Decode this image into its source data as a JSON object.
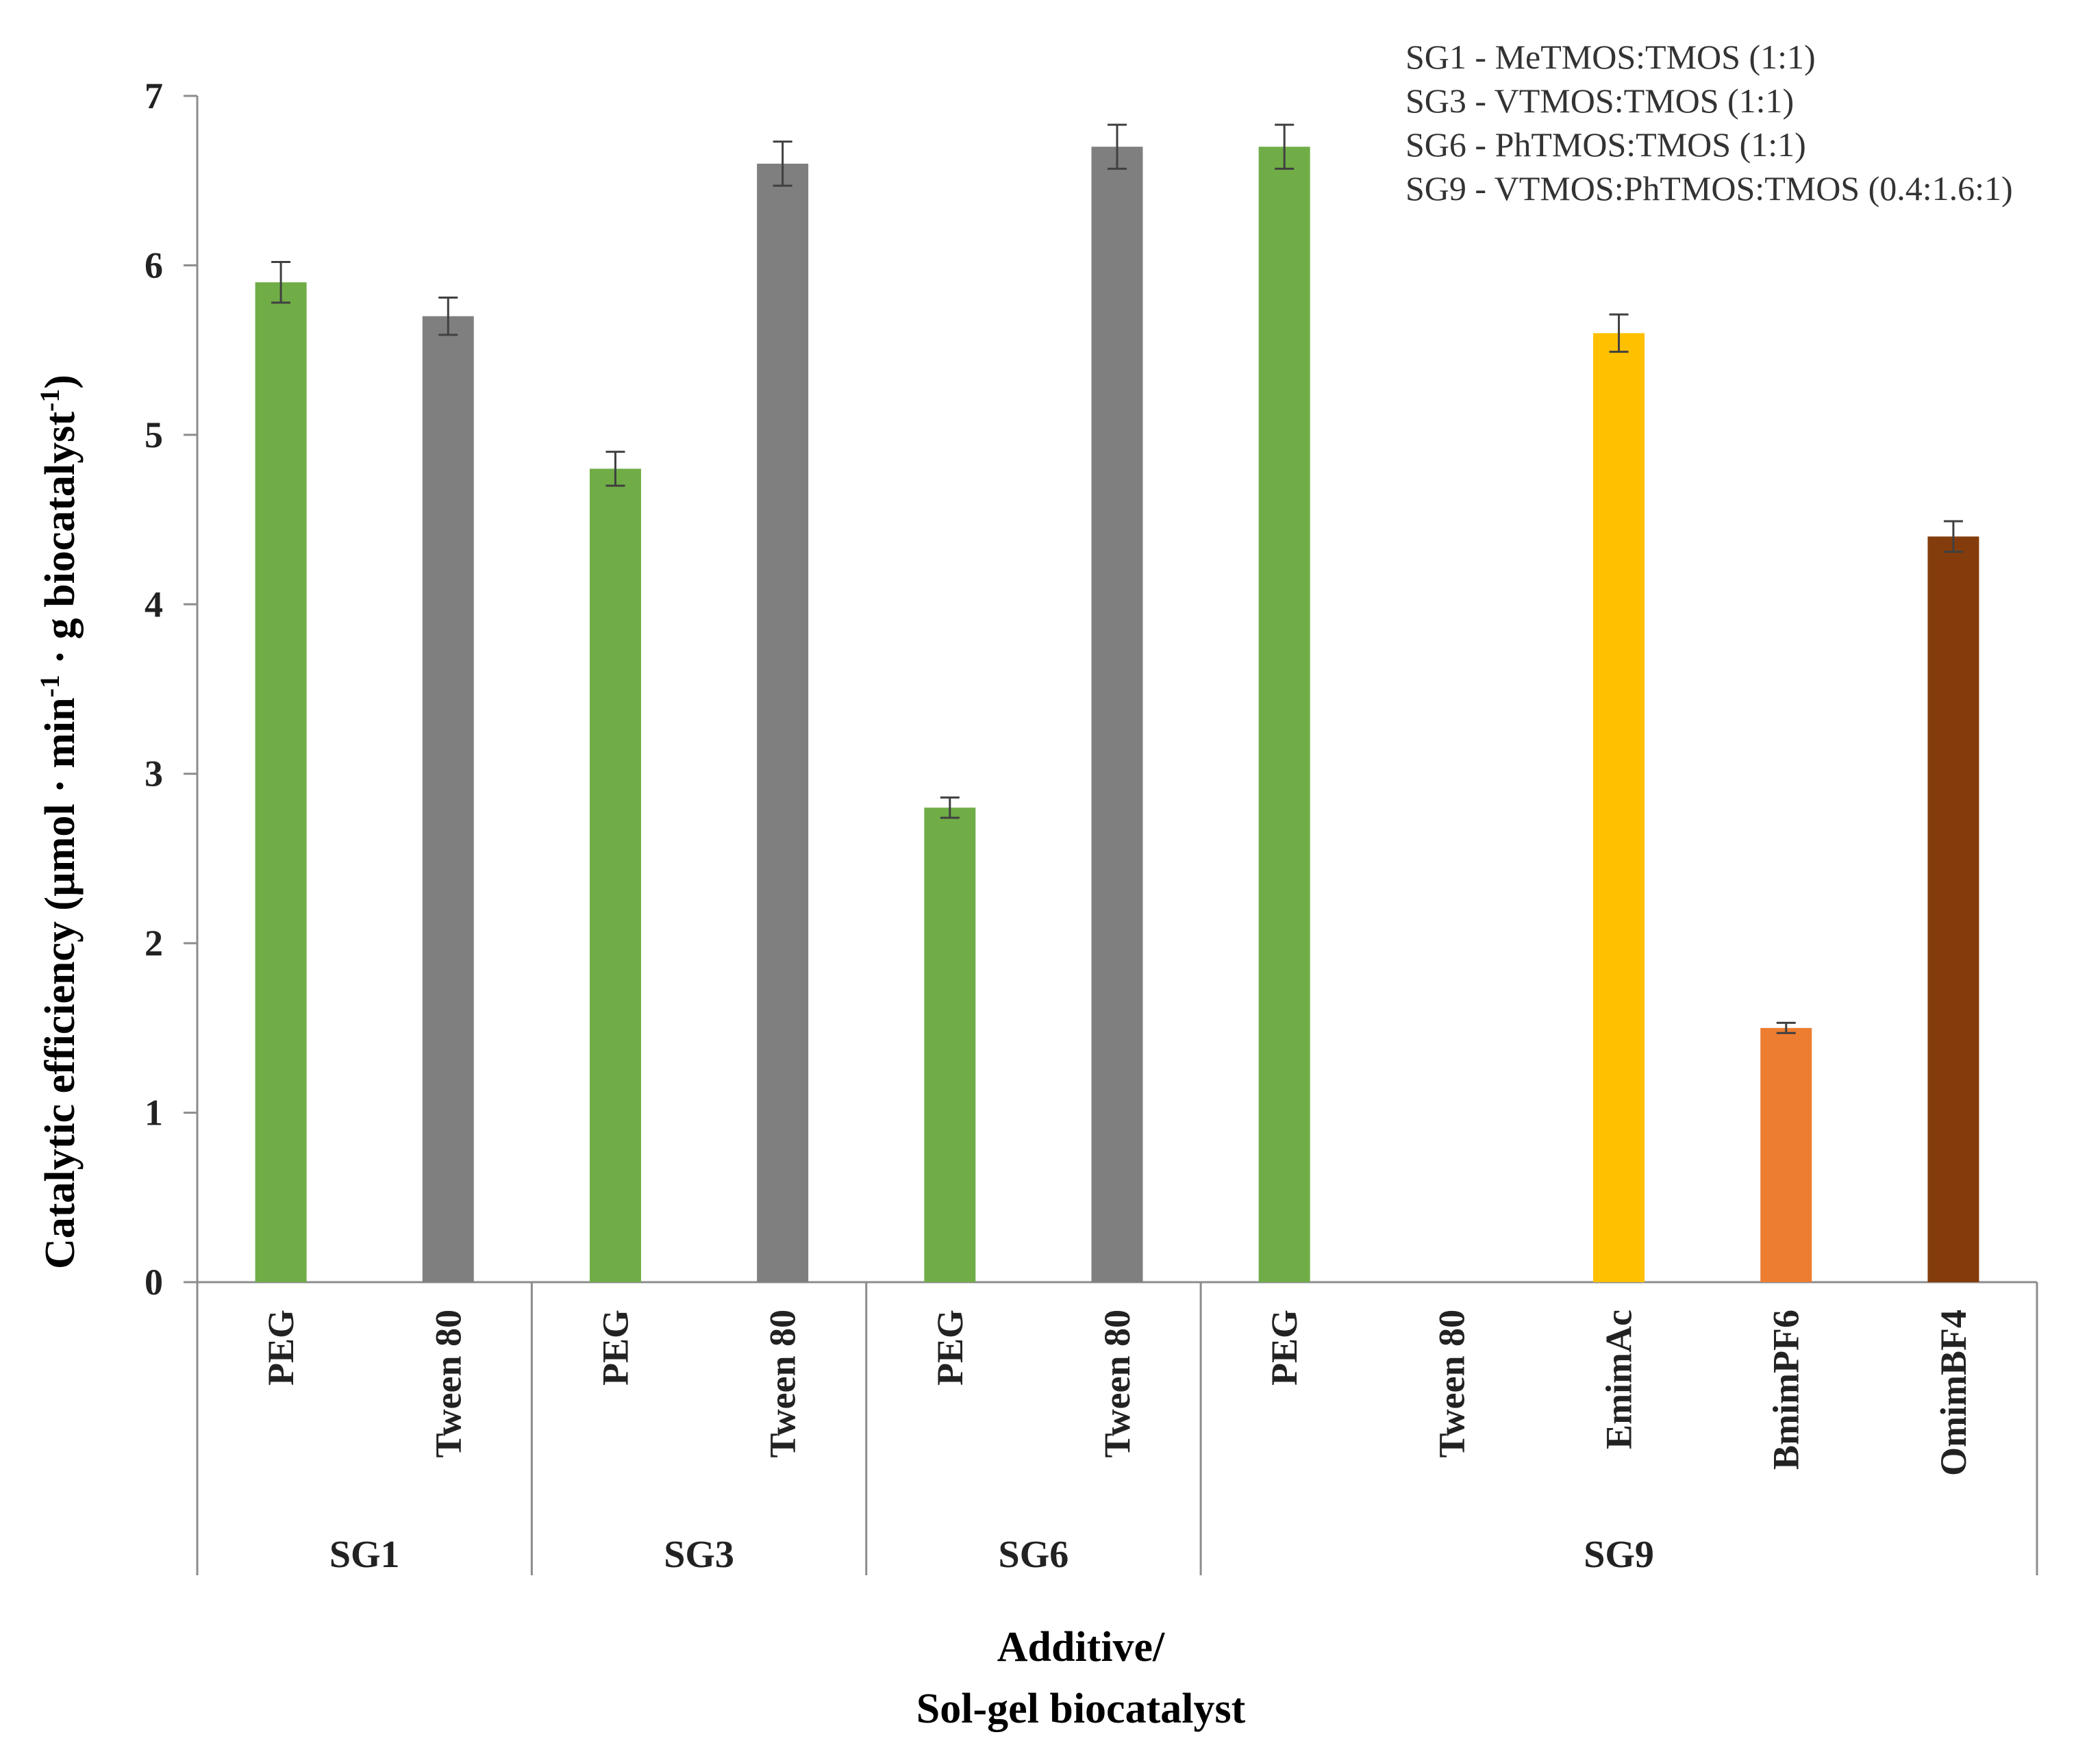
{
  "chart_data": {
    "type": "bar",
    "ylabel": "Catalytic efficiency (µmol · min",
    "ylabel_sup1": "-1",
    "ylabel_mid": " · g biocatalyst",
    "ylabel_sup2": "-1",
    "ylabel_end": ")",
    "xlabel_line1": "Additive/",
    "xlabel_line2": "Sol-gel biocatalyst",
    "ylim": [
      0,
      7
    ],
    "yticks": [
      "0",
      "1",
      "2",
      "3",
      "4",
      "5",
      "6",
      "7"
    ],
    "grid": false,
    "legend_notes": [
      "SG1  - MeTMOS:TMOS (1:1)",
      "SG3  - VTMOS:TMOS (1:1)",
      "SG6  - PhTMOS:TMOS (1:1)",
      "SG9 - VTMOS:PhTMOS:TMOS (0.4:1.6:1)"
    ],
    "groups": [
      {
        "name": "SG1",
        "start": 0,
        "count": 2
      },
      {
        "name": "SG3",
        "start": 2,
        "count": 2
      },
      {
        "name": "SG6",
        "start": 4,
        "count": 2
      },
      {
        "name": "SG9",
        "start": 6,
        "count": 5
      }
    ],
    "bars": [
      {
        "group": "SG1",
        "label": "PEG",
        "value": 5.9,
        "error": 0.12,
        "color": "#70ad47"
      },
      {
        "group": "SG1",
        "label": "Tween 80",
        "value": 5.7,
        "error": 0.11,
        "color": "#7f7f7f"
      },
      {
        "group": "SG3",
        "label": "PEG",
        "value": 4.8,
        "error": 0.1,
        "color": "#70ad47"
      },
      {
        "group": "SG3",
        "label": "Tween 80",
        "value": 6.6,
        "error": 0.13,
        "color": "#7f7f7f"
      },
      {
        "group": "SG6",
        "label": "PEG",
        "value": 2.8,
        "error": 0.06,
        "color": "#70ad47"
      },
      {
        "group": "SG6",
        "label": "Tween 80",
        "value": 6.7,
        "error": 0.13,
        "color": "#7f7f7f"
      },
      {
        "group": "SG9",
        "label": "PEG",
        "value": 6.7,
        "error": 0.13,
        "color": "#70ad47"
      },
      {
        "group": "SG9",
        "label": "Tween 80",
        "value": 0,
        "error": 0,
        "color": "#7f7f7f"
      },
      {
        "group": "SG9",
        "label": "EmimAc",
        "value": 5.6,
        "error": 0.11,
        "color": "#ffc000"
      },
      {
        "group": "SG9",
        "label": "BmimPF6",
        "value": 1.5,
        "error": 0.03,
        "color": "#ed7d31"
      },
      {
        "group": "SG9",
        "label": "OmimBF4",
        "value": 4.4,
        "error": 0.09,
        "color": "#843c0c"
      }
    ]
  }
}
